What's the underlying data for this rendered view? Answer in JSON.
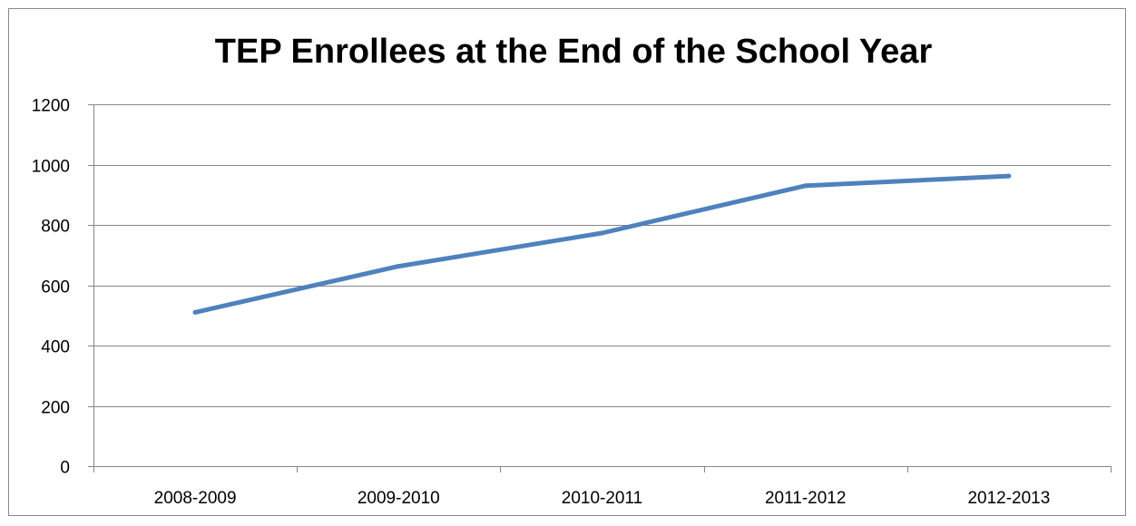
{
  "chart_data": {
    "type": "line",
    "title": "TEP Enrollees at the End of the School Year",
    "xlabel": "",
    "ylabel": "",
    "categories": [
      "2008-2009",
      "2009-2010",
      "2010-2011",
      "2011-2012",
      "2012-2013"
    ],
    "series": [
      {
        "values": [
          510,
          663,
          773,
          930,
          962
        ]
      }
    ],
    "ylim": [
      0,
      1200
    ],
    "yticks": [
      "0",
      "200",
      "400",
      "600",
      "800",
      "1000",
      "1200"
    ],
    "grid": true,
    "legend": "none",
    "colors": {
      "line": "#4f81bd",
      "grid": "#868686",
      "axis": "#868686",
      "frame": "#878787"
    }
  }
}
